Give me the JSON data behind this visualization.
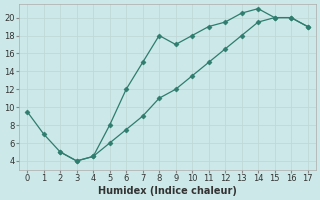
{
  "xlabel": "Humidex (Indice chaleur)",
  "line1_x": [
    0,
    1,
    2,
    3,
    4,
    5,
    6,
    7,
    8,
    9,
    10,
    11,
    12,
    13,
    14,
    15,
    16,
    17
  ],
  "line1_y": [
    9.5,
    7,
    5,
    4,
    4.5,
    8,
    12,
    15,
    18,
    17,
    18,
    19,
    19.5,
    20.5,
    21,
    20,
    20,
    19
  ],
  "line2_x": [
    2,
    3,
    4,
    5,
    6,
    7,
    8,
    9,
    10,
    11,
    12,
    13,
    14,
    15,
    16,
    17
  ],
  "line2_y": [
    5,
    4,
    4.5,
    6,
    7.5,
    9,
    11,
    12,
    13.5,
    15,
    16.5,
    18,
    19.5,
    20,
    20,
    19
  ],
  "xlim": [
    -0.5,
    17.5
  ],
  "ylim": [
    3,
    21.5
  ],
  "xticks": [
    0,
    1,
    2,
    3,
    4,
    5,
    6,
    7,
    8,
    9,
    10,
    11,
    12,
    13,
    14,
    15,
    16,
    17
  ],
  "yticks": [
    4,
    6,
    8,
    10,
    12,
    14,
    16,
    18,
    20
  ],
  "line_color": "#2e7d6e",
  "marker": "D",
  "markersize": 2.5,
  "bg_color": "#cce8e8",
  "grid_color": "#c0d8d8",
  "tick_fontsize": 6,
  "label_fontsize": 7
}
